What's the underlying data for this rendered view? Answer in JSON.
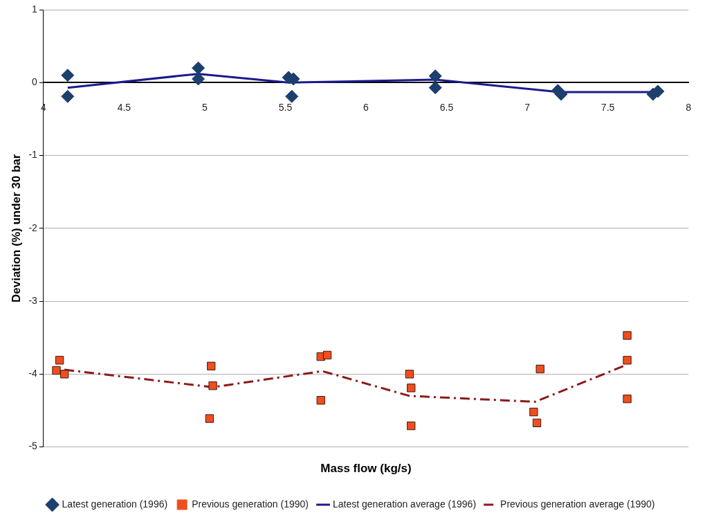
{
  "chart_data": {
    "type": "scatter",
    "xlabel": "Mass flow (kg/s)",
    "ylabel": "Deviation (%) under 30 bar",
    "xlim": [
      4,
      8
    ],
    "xticks": [
      4,
      4.5,
      5,
      5.5,
      6,
      6.5,
      7,
      7.5,
      8
    ],
    "ylim": [
      -5,
      1
    ],
    "yticks": [
      -5,
      -4,
      -3,
      -2,
      -1,
      0,
      1
    ],
    "grid": "y",
    "legend": "bottom",
    "series": [
      {
        "name": "Latest generation (1996)",
        "marker": "diamond",
        "color": "#1c3f6e",
        "x": [
          4.15,
          4.15,
          4.96,
          4.96,
          5.52,
          5.55,
          5.54,
          6.43,
          6.43,
          7.19,
          7.21,
          7.78,
          7.81
        ],
        "values": [
          0.1,
          -0.19,
          0.2,
          0.05,
          0.07,
          0.05,
          -0.19,
          0.09,
          -0.07,
          -0.11,
          -0.16,
          -0.16,
          -0.12
        ]
      },
      {
        "name": "Previous generation (1990)",
        "marker": "square",
        "color": "#f04e1e",
        "x": [
          4.1,
          4.08,
          4.13,
          5.04,
          5.05,
          5.03,
          5.72,
          5.76,
          5.72,
          6.27,
          6.28,
          6.28,
          7.08,
          7.04,
          7.06,
          7.62,
          7.62,
          7.62
        ],
        "values": [
          -3.81,
          -3.95,
          -4.0,
          -3.89,
          -4.16,
          -4.61,
          -3.76,
          -3.74,
          -4.36,
          -4.0,
          -4.19,
          -4.71,
          -3.93,
          -4.52,
          -4.67,
          -3.47,
          -3.81,
          -4.34
        ]
      },
      {
        "name": "Latest generation average (1996)",
        "type": "line",
        "marker": "none",
        "line_style": "solid",
        "color": "#1a1a8c",
        "x": [
          4.15,
          4.96,
          5.52,
          6.43,
          7.2,
          7.8
        ],
        "values": [
          -0.07,
          0.12,
          0.0,
          0.04,
          -0.13,
          -0.13
        ]
      },
      {
        "name": "Previous generation average (1990)",
        "type": "line",
        "marker": "none",
        "line_style": "dashed",
        "color": "#8b1a1a",
        "x": [
          4.13,
          5.05,
          5.73,
          6.27,
          7.05,
          7.62
        ],
        "values": [
          -3.94,
          -4.18,
          -3.96,
          -4.3,
          -4.38,
          -3.87
        ]
      }
    ]
  }
}
